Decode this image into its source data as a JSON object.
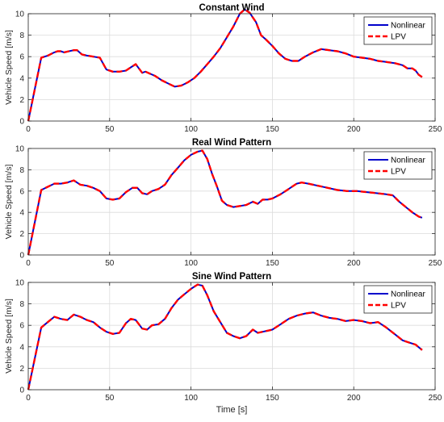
{
  "figure": {
    "xlabel_shared": "Time [s]"
  },
  "chart_data": [
    {
      "type": "line",
      "title": "Constant Wind",
      "xlabel": "",
      "ylabel": "Vehicle Speed [m/s]",
      "xlim": [
        0,
        250
      ],
      "ylim": [
        0,
        10
      ],
      "xticks": [
        0,
        50,
        100,
        150,
        200,
        250
      ],
      "yticks": [
        0,
        2,
        4,
        6,
        8,
        10
      ],
      "grid": true,
      "legend_position": "top-right",
      "series": [
        {
          "name": "Nonlinear",
          "color": "#0000cc",
          "style": "solid",
          "x": [
            0,
            8,
            12,
            16,
            18,
            20,
            22,
            25,
            28,
            30,
            33,
            36,
            40,
            44,
            48,
            52,
            56,
            60,
            63,
            66,
            70,
            72,
            75,
            78,
            82,
            86,
            90,
            94,
            98,
            102,
            106,
            110,
            114,
            118,
            122,
            126,
            130,
            133,
            136,
            140,
            143,
            146,
            150,
            154,
            158,
            162,
            166,
            170,
            175,
            180,
            185,
            190,
            195,
            200,
            205,
            210,
            215,
            220,
            225,
            230,
            233,
            236,
            238,
            240,
            242
          ],
          "y": [
            0,
            5.9,
            6.1,
            6.4,
            6.5,
            6.5,
            6.4,
            6.5,
            6.6,
            6.6,
            6.2,
            6.1,
            6.0,
            5.9,
            4.8,
            4.6,
            4.6,
            4.7,
            5.0,
            5.3,
            4.5,
            4.6,
            4.4,
            4.2,
            3.8,
            3.5,
            3.2,
            3.3,
            3.6,
            4.0,
            4.6,
            5.3,
            6.0,
            6.8,
            7.8,
            8.8,
            10.0,
            10.4,
            10.1,
            9.2,
            8.0,
            7.6,
            7.0,
            6.3,
            5.8,
            5.6,
            5.6,
            6.0,
            6.4,
            6.7,
            6.6,
            6.5,
            6.3,
            6.0,
            5.9,
            5.8,
            5.6,
            5.5,
            5.4,
            5.2,
            4.9,
            4.9,
            4.7,
            4.3,
            4.1
          ]
        },
        {
          "name": "LPV",
          "color": "#ff0000",
          "style": "dashed",
          "x": [
            0,
            8,
            12,
            16,
            18,
            20,
            22,
            25,
            28,
            30,
            33,
            36,
            40,
            44,
            48,
            52,
            56,
            60,
            63,
            66,
            70,
            72,
            75,
            78,
            82,
            86,
            90,
            94,
            98,
            102,
            106,
            110,
            114,
            118,
            122,
            126,
            130,
            133,
            136,
            140,
            143,
            146,
            150,
            154,
            158,
            162,
            166,
            170,
            175,
            180,
            185,
            190,
            195,
            200,
            205,
            210,
            215,
            220,
            225,
            230,
            233,
            236,
            238,
            240,
            242
          ],
          "y": [
            0,
            5.9,
            6.1,
            6.4,
            6.5,
            6.5,
            6.4,
            6.5,
            6.6,
            6.6,
            6.2,
            6.1,
            6.0,
            5.9,
            4.8,
            4.6,
            4.6,
            4.7,
            5.0,
            5.3,
            4.5,
            4.6,
            4.4,
            4.2,
            3.8,
            3.5,
            3.2,
            3.3,
            3.6,
            4.0,
            4.6,
            5.3,
            6.0,
            6.8,
            7.8,
            8.8,
            10.0,
            10.4,
            10.1,
            9.2,
            8.0,
            7.6,
            7.0,
            6.3,
            5.8,
            5.6,
            5.6,
            6.0,
            6.4,
            6.7,
            6.6,
            6.5,
            6.3,
            6.0,
            5.9,
            5.8,
            5.6,
            5.5,
            5.4,
            5.2,
            4.9,
            4.9,
            4.7,
            4.3,
            4.1
          ]
        }
      ]
    },
    {
      "type": "line",
      "title": "Real Wind Pattern",
      "xlabel": "",
      "ylabel": "Vehicle Speed [m/s]",
      "xlim": [
        0,
        250
      ],
      "ylim": [
        0,
        10
      ],
      "xticks": [
        0,
        50,
        100,
        150,
        200,
        250
      ],
      "yticks": [
        0,
        2,
        4,
        6,
        8,
        10
      ],
      "grid": true,
      "legend_position": "top-right",
      "series": [
        {
          "name": "Nonlinear",
          "color": "#0000cc",
          "style": "solid",
          "x": [
            0,
            8,
            12,
            16,
            20,
            24,
            28,
            32,
            36,
            40,
            44,
            48,
            52,
            56,
            60,
            64,
            67,
            70,
            73,
            76,
            80,
            84,
            88,
            92,
            96,
            100,
            104,
            107,
            110,
            113,
            116,
            119,
            122,
            126,
            130,
            134,
            138,
            141,
            144,
            147,
            150,
            155,
            160,
            165,
            168,
            172,
            178,
            184,
            190,
            196,
            202,
            208,
            214,
            220,
            224,
            228,
            232,
            236,
            240,
            242
          ],
          "y": [
            0,
            6.1,
            6.4,
            6.7,
            6.7,
            6.8,
            7.0,
            6.6,
            6.5,
            6.3,
            6.0,
            5.3,
            5.2,
            5.3,
            5.9,
            6.3,
            6.3,
            5.8,
            5.7,
            6.0,
            6.2,
            6.6,
            7.5,
            8.2,
            8.9,
            9.4,
            9.7,
            9.8,
            9.0,
            7.6,
            6.4,
            5.1,
            4.7,
            4.5,
            4.6,
            4.7,
            5.0,
            4.8,
            5.2,
            5.2,
            5.3,
            5.7,
            6.2,
            6.7,
            6.8,
            6.7,
            6.5,
            6.3,
            6.1,
            6.0,
            6.0,
            5.9,
            5.8,
            5.7,
            5.6,
            5.0,
            4.5,
            4.0,
            3.6,
            3.5
          ]
        },
        {
          "name": "LPV",
          "color": "#ff0000",
          "style": "dashed",
          "x": [
            0,
            8,
            12,
            16,
            20,
            24,
            28,
            32,
            36,
            40,
            44,
            48,
            52,
            56,
            60,
            64,
            67,
            70,
            73,
            76,
            80,
            84,
            88,
            92,
            96,
            100,
            104,
            107,
            110,
            113,
            116,
            119,
            122,
            126,
            130,
            134,
            138,
            141,
            144,
            147,
            150,
            155,
            160,
            165,
            168,
            172,
            178,
            184,
            190,
            196,
            202,
            208,
            214,
            220,
            224,
            228,
            232,
            236,
            240,
            242
          ],
          "y": [
            0,
            6.1,
            6.4,
            6.7,
            6.7,
            6.8,
            7.0,
            6.6,
            6.5,
            6.3,
            6.0,
            5.3,
            5.2,
            5.3,
            5.9,
            6.3,
            6.3,
            5.8,
            5.7,
            6.0,
            6.2,
            6.6,
            7.5,
            8.2,
            8.9,
            9.4,
            9.7,
            9.8,
            9.0,
            7.6,
            6.4,
            5.1,
            4.7,
            4.5,
            4.6,
            4.7,
            5.0,
            4.8,
            5.2,
            5.2,
            5.3,
            5.7,
            6.2,
            6.7,
            6.8,
            6.7,
            6.5,
            6.3,
            6.1,
            6.0,
            6.0,
            5.9,
            5.8,
            5.7,
            5.6,
            5.0,
            4.5,
            4.0,
            3.6,
            3.5
          ]
        }
      ]
    },
    {
      "type": "line",
      "title": "Sine Wind Pattern",
      "xlabel": "Time [s]",
      "ylabel": "Vehicle Speed [m/s]",
      "xlim": [
        0,
        250
      ],
      "ylim": [
        0,
        10
      ],
      "xticks": [
        0,
        50,
        100,
        150,
        200,
        250
      ],
      "yticks": [
        0,
        2,
        4,
        6,
        8,
        10
      ],
      "grid": true,
      "legend_position": "top-right",
      "series": [
        {
          "name": "Nonlinear",
          "color": "#0000cc",
          "style": "solid",
          "x": [
            0,
            8,
            12,
            16,
            20,
            24,
            28,
            32,
            36,
            40,
            44,
            48,
            52,
            56,
            60,
            63,
            66,
            70,
            73,
            76,
            80,
            84,
            88,
            92,
            96,
            100,
            104,
            107,
            110,
            114,
            118,
            122,
            126,
            130,
            134,
            138,
            141,
            144,
            147,
            150,
            155,
            160,
            165,
            170,
            175,
            180,
            185,
            190,
            195,
            200,
            205,
            210,
            215,
            220,
            225,
            230,
            234,
            238,
            242
          ],
          "y": [
            0,
            5.8,
            6.3,
            6.8,
            6.6,
            6.5,
            7.0,
            6.8,
            6.5,
            6.3,
            5.8,
            5.4,
            5.2,
            5.3,
            6.2,
            6.6,
            6.5,
            5.7,
            5.6,
            6.0,
            6.1,
            6.6,
            7.6,
            8.4,
            8.9,
            9.4,
            9.8,
            9.7,
            8.8,
            7.3,
            6.3,
            5.3,
            5.0,
            4.8,
            5.0,
            5.6,
            5.3,
            5.4,
            5.5,
            5.6,
            6.1,
            6.6,
            6.9,
            7.1,
            7.2,
            6.9,
            6.7,
            6.6,
            6.4,
            6.5,
            6.4,
            6.2,
            6.3,
            5.8,
            5.2,
            4.6,
            4.4,
            4.2,
            3.7
          ]
        },
        {
          "name": "LPV",
          "color": "#ff0000",
          "style": "dashed",
          "x": [
            0,
            8,
            12,
            16,
            20,
            24,
            28,
            32,
            36,
            40,
            44,
            48,
            52,
            56,
            60,
            63,
            66,
            70,
            73,
            76,
            80,
            84,
            88,
            92,
            96,
            100,
            104,
            107,
            110,
            114,
            118,
            122,
            126,
            130,
            134,
            138,
            141,
            144,
            147,
            150,
            155,
            160,
            165,
            170,
            175,
            180,
            185,
            190,
            195,
            200,
            205,
            210,
            215,
            220,
            225,
            230,
            234,
            238,
            242
          ],
          "y": [
            0,
            5.8,
            6.3,
            6.8,
            6.6,
            6.5,
            7.0,
            6.8,
            6.5,
            6.3,
            5.8,
            5.4,
            5.2,
            5.3,
            6.2,
            6.6,
            6.5,
            5.7,
            5.6,
            6.0,
            6.1,
            6.6,
            7.6,
            8.4,
            8.9,
            9.4,
            9.8,
            9.7,
            8.8,
            7.3,
            6.3,
            5.3,
            5.0,
            4.8,
            5.0,
            5.6,
            5.3,
            5.4,
            5.5,
            5.6,
            6.1,
            6.6,
            6.9,
            7.1,
            7.2,
            6.9,
            6.7,
            6.6,
            6.4,
            6.5,
            6.4,
            6.2,
            6.3,
            5.8,
            5.2,
            4.6,
            4.4,
            4.2,
            3.7
          ]
        }
      ]
    }
  ]
}
